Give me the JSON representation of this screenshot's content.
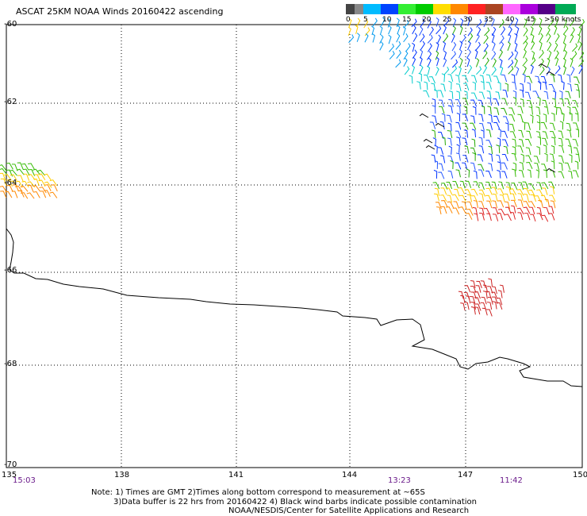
{
  "title": "ASCAT 25KM NOAA Winds 20160422 ascending",
  "legend": {
    "colors": [
      "#555555",
      "#aaaaaa",
      "#00aaee",
      "#0000ff",
      "#55cc00",
      "#ffcc00",
      "#ff8800",
      "#ff3333",
      "#cc0000",
      "#8b4a2a",
      "#ffaaff",
      "#8800cc",
      "#330066"
    ],
    "labels": [
      "0",
      "5",
      "10",
      "15",
      "20",
      "25",
      "30",
      "35",
      "40",
      "45",
      ">50 knots"
    ]
  },
  "axes": {
    "lat_labels": [
      "-60",
      "-62",
      "-64",
      "-66",
      "-68",
      "-70"
    ],
    "lon_labels": [
      "135",
      "138",
      "141",
      "144",
      "147",
      "150"
    ]
  },
  "times": [
    "15:03",
    "13:23",
    "11:42"
  ],
  "notes": [
    "Note: 1) Times are GMT 2)Times along bottom correspond to measurement at ~65S",
    "3)Data buffer is 22 hrs from 20160422 4) Black wind barbs indicate possible contamination",
    "NOAA/NESDIS/Center for Satellite Applications and Research"
  ]
}
